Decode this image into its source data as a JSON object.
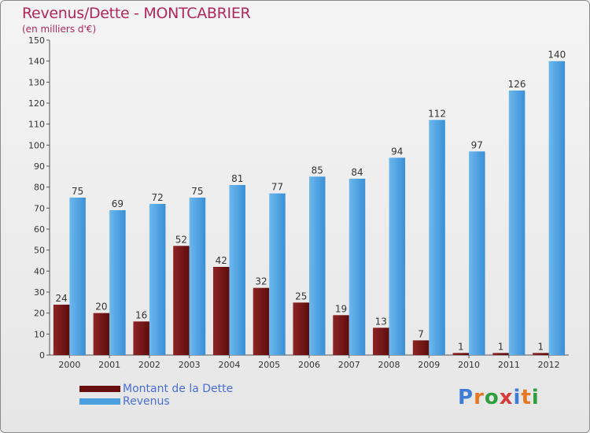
{
  "title": "Revenus/Dette - MONTCABRIER",
  "subtitle": "(en milliers d'€)",
  "colors": {
    "title": "#b0285a",
    "dette": "#7a1414",
    "revenus": "#4a9fe0",
    "legend_text": "#4a6fd6"
  },
  "legend": {
    "dette_label": "Montant de la Dette",
    "revenus_label": "Revenus"
  },
  "logo": {
    "text": "Proxiti",
    "letter_colors": [
      "#3d7dd6",
      "#e87722",
      "#2e9e3e",
      "#d63c3c",
      "#3d7dd6",
      "#e87722",
      "#2e9e3e"
    ]
  },
  "chart_data": {
    "type": "bar",
    "categories": [
      "2000",
      "2001",
      "2002",
      "2003",
      "2004",
      "2005",
      "2006",
      "2007",
      "2008",
      "2009",
      "2010",
      "2011",
      "2012"
    ],
    "series": [
      {
        "name": "Montant de la Dette",
        "values": [
          24,
          20,
          16,
          52,
          42,
          32,
          25,
          19,
          13,
          7,
          1,
          1,
          1
        ]
      },
      {
        "name": "Revenus",
        "values": [
          75,
          69,
          72,
          75,
          81,
          77,
          85,
          84,
          94,
          112,
          97,
          126,
          140
        ]
      }
    ],
    "ylim": [
      0,
      150
    ],
    "yticks": [
      0,
      10,
      20,
      30,
      40,
      50,
      60,
      70,
      80,
      90,
      100,
      110,
      120,
      130,
      140,
      150
    ],
    "grid": false,
    "legend_position": "bottom-left"
  }
}
